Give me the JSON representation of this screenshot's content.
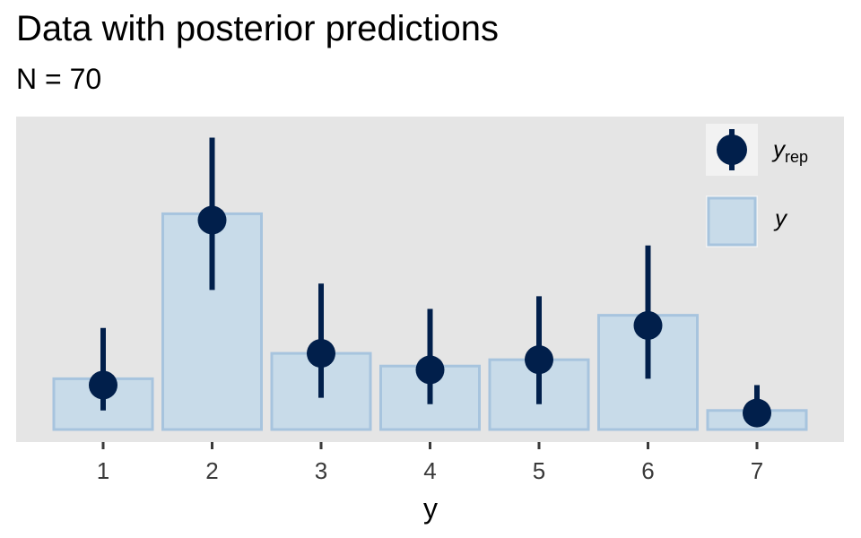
{
  "chart_data": {
    "type": "bar",
    "title": "Data with posterior predictions",
    "subtitle": "N = 70",
    "xlabel": "y",
    "ylabel": "",
    "categories": [
      "1",
      "2",
      "3",
      "4",
      "5",
      "6",
      "7"
    ],
    "series": [
      {
        "name": "y",
        "values": [
          4,
          17,
          6,
          5,
          5.5,
          9,
          1.5
        ]
      },
      {
        "name": "y_rep",
        "values": [
          3.5,
          16.5,
          6,
          4.7,
          5.5,
          8.2,
          1.3
        ],
        "lower": [
          1.5,
          11,
          2.5,
          2,
          2,
          4,
          1.3
        ],
        "upper": [
          8,
          23,
          11.5,
          9.5,
          10.5,
          14.5,
          3.5
        ]
      }
    ],
    "ylim": [
      0,
      23.6
    ],
    "grid": false,
    "legend_position": "top-right",
    "legend": [
      {
        "label": "y",
        "sub": "rep",
        "key": "point-interval"
      },
      {
        "label": "y",
        "key": "bar"
      }
    ],
    "colors": {
      "panel": "#e5e5e5",
      "bar_fill": "#c8dbe9",
      "bar_stroke": "#a7c4de",
      "point": "#011f4b",
      "tick": "#3a3a3a"
    }
  }
}
